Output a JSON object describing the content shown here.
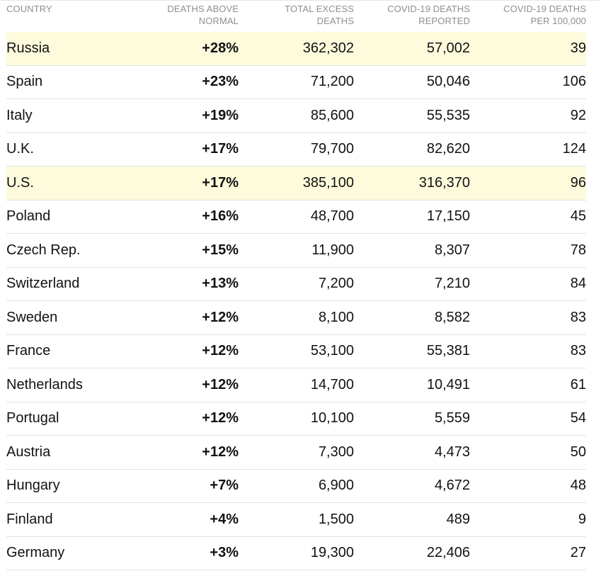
{
  "table": {
    "headers": {
      "country": "COUNTRY",
      "above_line1": "DEATHS ABOVE",
      "above_line2": "NORMAL",
      "total_line1": "TOTAL EXCESS",
      "total_line2": "DEATHS",
      "reported_line1": "COVID-19 DEATHS",
      "reported_line2": "REPORTED",
      "per_line1": "COVID-19 DEATHS",
      "per_line2": "PER 100,000"
    },
    "highlight_color": "#fdfbdc",
    "rows": [
      {
        "country": "Russia",
        "above": "+28%",
        "total": "362,302",
        "reported": "57,002",
        "per": "39",
        "highlighted": true
      },
      {
        "country": "Spain",
        "above": "+23%",
        "total": "71,200",
        "reported": "50,046",
        "per": "106",
        "highlighted": false
      },
      {
        "country": "Italy",
        "above": "+19%",
        "total": "85,600",
        "reported": "55,535",
        "per": "92",
        "highlighted": false
      },
      {
        "country": "U.K.",
        "above": "+17%",
        "total": "79,700",
        "reported": "82,620",
        "per": "124",
        "highlighted": false
      },
      {
        "country": "U.S.",
        "above": "+17%",
        "total": "385,100",
        "reported": "316,370",
        "per": "96",
        "highlighted": true
      },
      {
        "country": "Poland",
        "above": "+16%",
        "total": "48,700",
        "reported": "17,150",
        "per": "45",
        "highlighted": false
      },
      {
        "country": "Czech Rep.",
        "above": "+15%",
        "total": "11,900",
        "reported": "8,307",
        "per": "78",
        "highlighted": false
      },
      {
        "country": "Switzerland",
        "above": "+13%",
        "total": "7,200",
        "reported": "7,210",
        "per": "84",
        "highlighted": false
      },
      {
        "country": "Sweden",
        "above": "+12%",
        "total": "8,100",
        "reported": "8,582",
        "per": "83",
        "highlighted": false
      },
      {
        "country": "France",
        "above": "+12%",
        "total": "53,100",
        "reported": "55,381",
        "per": "83",
        "highlighted": false
      },
      {
        "country": "Netherlands",
        "above": "+12%",
        "total": "14,700",
        "reported": "10,491",
        "per": "61",
        "highlighted": false
      },
      {
        "country": "Portugal",
        "above": "+12%",
        "total": "10,100",
        "reported": "5,559",
        "per": "54",
        "highlighted": false
      },
      {
        "country": "Austria",
        "above": "+12%",
        "total": "7,300",
        "reported": "4,473",
        "per": "50",
        "highlighted": false
      },
      {
        "country": "Hungary",
        "above": "+7%",
        "total": "6,900",
        "reported": "4,672",
        "per": "48",
        "highlighted": false
      },
      {
        "country": "Finland",
        "above": "+4%",
        "total": "1,500",
        "reported": "489",
        "per": "9",
        "highlighted": false
      },
      {
        "country": "Germany",
        "above": "+3%",
        "total": "19,300",
        "reported": "22,406",
        "per": "27",
        "highlighted": false
      }
    ]
  }
}
